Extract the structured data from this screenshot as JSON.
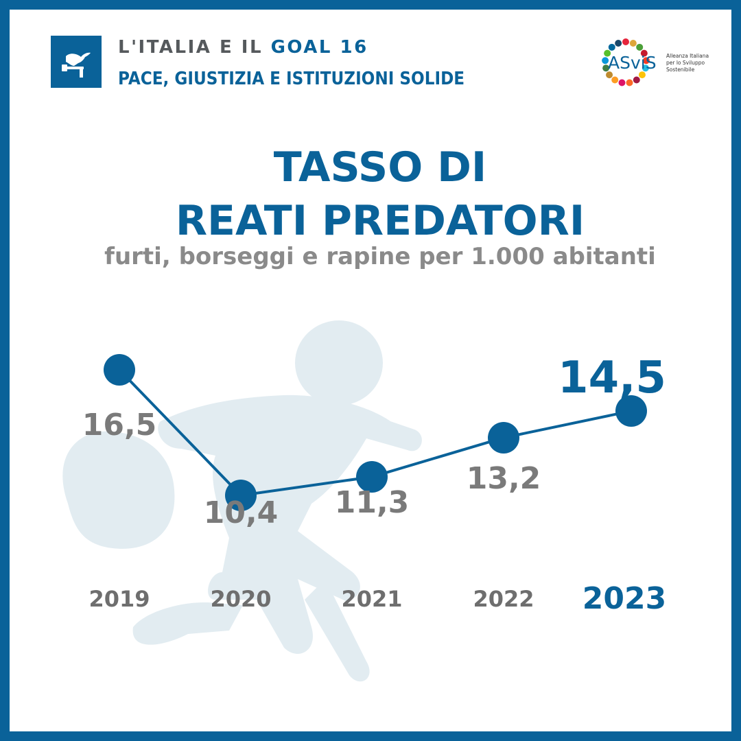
{
  "header": {
    "line1_prefix": "L'ITALIA E IL ",
    "line1_goal": "GOAL 16",
    "line2": "PACE, GIUSTIZIA E ISTITUZIONI SOLIDE"
  },
  "logo": {
    "name": "ASviS",
    "tagline_1": "Alleanza Italiana",
    "tagline_2": "per lo Sviluppo",
    "tagline_3": "Sostenibile"
  },
  "colors": {
    "brand_blue": "#0a6299",
    "gray_text": "#7a7a7a",
    "silhouette": "#e2ecf1"
  },
  "chart_data": {
    "type": "line",
    "title_line1": "TASSO DI",
    "title_line2": "REATI PREDATORI",
    "subtitle": "furti, borseggi e rapine per 1.000 abitanti",
    "categories": [
      "2019",
      "2020",
      "2021",
      "2022",
      "2023"
    ],
    "values": [
      16.5,
      10.4,
      11.3,
      13.2,
      14.5
    ],
    "value_labels": [
      "16,5",
      "10,4",
      "11,3",
      "13,2",
      "14,5"
    ],
    "highlight_index": 4,
    "grid": false
  }
}
